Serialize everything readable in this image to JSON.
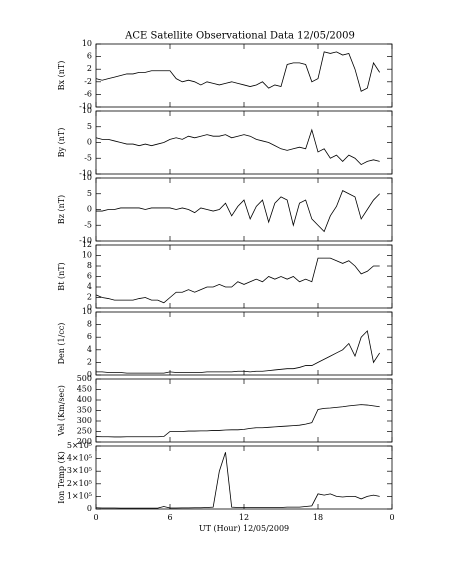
{
  "chart_data": [
    {
      "type": "line",
      "title": "ACE Satellite Observational Data  12/05/2009",
      "ylabel": "Bx (nT)",
      "color": "#000000",
      "x": [
        0,
        0.5,
        1,
        1.5,
        2,
        2.5,
        3,
        3.5,
        4,
        4.5,
        5,
        5.5,
        6,
        6.5,
        7,
        7.5,
        8,
        8.5,
        9,
        9.5,
        10,
        10.5,
        11,
        11.5,
        12,
        12.5,
        13,
        13.5,
        14,
        14.5,
        15,
        15.5,
        16,
        16.5,
        17,
        17.5,
        18,
        18.5,
        19,
        19.5,
        20,
        20.5,
        21,
        21.5,
        22,
        22.5,
        23
      ],
      "values": [
        -1,
        -1.5,
        -1,
        -0.5,
        0,
        0.5,
        0.5,
        1,
        1,
        1.5,
        1.5,
        1.5,
        1.5,
        -1,
        -2,
        -1.5,
        -2,
        -3,
        -2,
        -2.5,
        -3,
        -2.5,
        -2,
        -2.5,
        -3,
        -3.5,
        -3,
        -2,
        -4,
        -3,
        -3.5,
        3.5,
        4,
        4,
        3.5,
        -2,
        -1,
        7.5,
        7,
        7.5,
        6.5,
        7,
        2,
        -5,
        -4,
        4,
        1
      ],
      "xlim": [
        0,
        24
      ],
      "ylim": [
        -10,
        10
      ],
      "yticks": [
        -10,
        -6,
        -2,
        2,
        6,
        10
      ]
    },
    {
      "type": "line",
      "ylabel": "By (nT)",
      "color": "#000000",
      "x": [
        0,
        0.5,
        1,
        1.5,
        2,
        2.5,
        3,
        3.5,
        4,
        4.5,
        5,
        5.5,
        6,
        6.5,
        7,
        7.5,
        8,
        8.5,
        9,
        9.5,
        10,
        10.5,
        11,
        11.5,
        12,
        12.5,
        13,
        13.5,
        14,
        14.5,
        15,
        15.5,
        16,
        16.5,
        17,
        17.5,
        18,
        18.5,
        19,
        19.5,
        20,
        20.5,
        21,
        21.5,
        22,
        22.5,
        23
      ],
      "values": [
        1.5,
        1,
        1,
        0.5,
        0,
        -0.5,
        -0.5,
        -1,
        -0.5,
        -1,
        -0.5,
        0,
        1,
        1.5,
        1,
        2,
        1.5,
        2,
        2.5,
        2,
        2,
        2.5,
        1.5,
        2,
        2.5,
        2,
        1,
        0.5,
        0,
        -1,
        -2,
        -2.5,
        -2,
        -1.5,
        -2,
        4,
        -3,
        -2,
        -5,
        -4,
        -6,
        -4,
        -5,
        -7,
        -6,
        -5.5,
        -6
      ],
      "xlim": [
        0,
        24
      ],
      "ylim": [
        -10,
        10
      ],
      "yticks": [
        -10,
        -5,
        0,
        5,
        10
      ]
    },
    {
      "type": "line",
      "ylabel": "Bz (nT)",
      "color": "#000000",
      "x": [
        0,
        0.5,
        1,
        1.5,
        2,
        2.5,
        3,
        3.5,
        4,
        4.5,
        5,
        5.5,
        6,
        6.5,
        7,
        7.5,
        8,
        8.5,
        9,
        9.5,
        10,
        10.5,
        11,
        11.5,
        12,
        12.5,
        13,
        13.5,
        14,
        14.5,
        15,
        15.5,
        16,
        16.5,
        17,
        17.5,
        18,
        18.5,
        19,
        19.5,
        20,
        20.5,
        21,
        21.5,
        22,
        22.5,
        23
      ],
      "values": [
        -0.5,
        -0.5,
        0,
        0,
        0.5,
        0.5,
        0.5,
        0.5,
        0,
        0.5,
        0.5,
        0.5,
        0.5,
        0,
        0.5,
        0,
        -1,
        0.5,
        0,
        -0.5,
        0,
        2,
        -2,
        1,
        3,
        -3,
        1,
        3,
        -4,
        2,
        4,
        3,
        -5,
        2,
        3,
        -3,
        -5,
        -7,
        -2,
        1,
        6,
        5,
        4,
        -3,
        0,
        3,
        5
      ],
      "xlim": [
        0,
        24
      ],
      "ylim": [
        -10,
        10
      ],
      "yticks": [
        -10,
        -5,
        0,
        5,
        10
      ]
    },
    {
      "type": "line",
      "ylabel": "Bt (nT)",
      "color": "#000000",
      "x": [
        0,
        0.5,
        1,
        1.5,
        2,
        2.5,
        3,
        3.5,
        4,
        4.5,
        5,
        5.5,
        6,
        6.5,
        7,
        7.5,
        8,
        8.5,
        9,
        9.5,
        10,
        10.5,
        11,
        11.5,
        12,
        12.5,
        13,
        13.5,
        14,
        14.5,
        15,
        15.5,
        16,
        16.5,
        17,
        17.5,
        18,
        18.5,
        19,
        19.5,
        20,
        20.5,
        21,
        21.5,
        22,
        22.5,
        23
      ],
      "values": [
        2.5,
        2,
        1.8,
        1.5,
        1.5,
        1.5,
        1.5,
        1.8,
        2,
        1.5,
        1.5,
        1,
        2,
        3,
        3,
        3.5,
        3,
        3.5,
        4,
        4,
        4.5,
        4,
        4,
        5,
        4.5,
        5,
        5.5,
        5,
        6,
        5.5,
        6,
        5.5,
        6,
        5,
        5.5,
        5,
        9.5,
        9.5,
        9.5,
        9,
        8.5,
        9,
        8,
        6.5,
        7,
        8,
        8
      ],
      "xlim": [
        0,
        24
      ],
      "ylim": [
        0,
        12
      ],
      "yticks": [
        0,
        2,
        4,
        6,
        8,
        10,
        12
      ]
    },
    {
      "type": "line",
      "ylabel": "Den (1/cc)",
      "color": "#000000",
      "x": [
        0,
        0.5,
        1,
        1.5,
        2,
        2.5,
        3,
        3.5,
        4,
        4.5,
        5,
        5.5,
        6,
        6.5,
        7,
        7.5,
        8,
        8.5,
        9,
        9.5,
        10,
        10.5,
        11,
        11.5,
        12,
        12.5,
        13,
        13.5,
        14,
        14.5,
        15,
        15.5,
        16,
        16.5,
        17,
        17.5,
        18,
        18.5,
        19,
        19.5,
        20,
        20.5,
        21,
        21.5,
        22,
        22.5,
        23
      ],
      "values": [
        0.5,
        0.5,
        0.4,
        0.4,
        0.4,
        0.3,
        0.3,
        0.3,
        0.3,
        0.3,
        0.3,
        0.3,
        0.5,
        0.4,
        0.4,
        0.4,
        0.4,
        0.4,
        0.5,
        0.5,
        0.5,
        0.5,
        0.5,
        0.6,
        0.6,
        0.5,
        0.6,
        0.6,
        0.7,
        0.8,
        0.9,
        1,
        1,
        1.2,
        1.5,
        1.5,
        2,
        2.5,
        3,
        3.5,
        4,
        5,
        3,
        6,
        7,
        2,
        3.5
      ],
      "xlim": [
        0,
        24
      ],
      "ylim": [
        0,
        10
      ],
      "yticks": [
        0,
        2,
        4,
        6,
        8,
        10
      ]
    },
    {
      "type": "line",
      "ylabel": "Vel (Km/sec)",
      "color": "#000000",
      "x": [
        0,
        0.5,
        1,
        1.5,
        2,
        2.5,
        3,
        3.5,
        4,
        4.5,
        5,
        5.5,
        6,
        6.5,
        7,
        7.5,
        8,
        8.5,
        9,
        9.5,
        10,
        10.5,
        11,
        11.5,
        12,
        12.5,
        13,
        13.5,
        14,
        14.5,
        15,
        15.5,
        16,
        16.5,
        17,
        17.5,
        18,
        18.5,
        19,
        19.5,
        20,
        20.5,
        21,
        21.5,
        22,
        22.5,
        23
      ],
      "values": [
        226,
        225,
        225,
        224,
        224,
        225,
        225,
        225,
        225,
        225,
        225,
        226,
        250,
        250,
        250,
        252,
        252,
        253,
        253,
        255,
        255,
        257,
        258,
        258,
        260,
        265,
        268,
        268,
        270,
        272,
        274,
        276,
        278,
        280,
        285,
        292,
        355,
        360,
        362,
        365,
        368,
        372,
        375,
        378,
        376,
        372,
        368
      ],
      "xlim": [
        0,
        24
      ],
      "ylim": [
        200,
        500
      ],
      "yticks": [
        200,
        250,
        300,
        350,
        400,
        450,
        500
      ]
    },
    {
      "type": "line",
      "ylabel": "Ion Temp (K)",
      "xlabel": "UT (Hour)  12/05/2009",
      "color": "#000000",
      "x": [
        0,
        0.5,
        1,
        1.5,
        2,
        2.5,
        3,
        3.5,
        4,
        4.5,
        5,
        5.5,
        6,
        6.5,
        7,
        7.5,
        8,
        8.5,
        9,
        9.5,
        10,
        10.5,
        11,
        11.5,
        12,
        12.5,
        13,
        13.5,
        14,
        14.5,
        15,
        15.5,
        16,
        16.5,
        17,
        17.5,
        18,
        18.5,
        19,
        19.5,
        20,
        20.5,
        21,
        21.5,
        22,
        22.5,
        23
      ],
      "values": [
        10000,
        8000,
        8000,
        8000,
        7000,
        7000,
        7000,
        7000,
        7000,
        7000,
        7000,
        20000,
        8000,
        8000,
        9000,
        9000,
        10000,
        10000,
        12000,
        15000,
        300000,
        450000,
        15000,
        12000,
        12000,
        12000,
        12000,
        12000,
        12000,
        12000,
        12000,
        15000,
        15000,
        15000,
        20000,
        25000,
        120000,
        110000,
        120000,
        100000,
        95000,
        100000,
        100000,
        80000,
        100000,
        110000,
        100000
      ],
      "xlim": [
        0,
        24
      ],
      "ylim": [
        0,
        500000
      ],
      "yticks": [
        0,
        {
          "value": 100000,
          "label": "1×10⁵"
        },
        {
          "value": 200000,
          "label": "2×10⁵"
        },
        {
          "value": 300000,
          "label": "3×10⁵"
        },
        {
          "value": 400000,
          "label": "4×10⁵"
        },
        {
          "value": 500000,
          "label": "5×10⁵"
        }
      ],
      "xticks": [
        0,
        6,
        12,
        18,
        {
          "value": 24,
          "label": "0"
        }
      ]
    }
  ]
}
